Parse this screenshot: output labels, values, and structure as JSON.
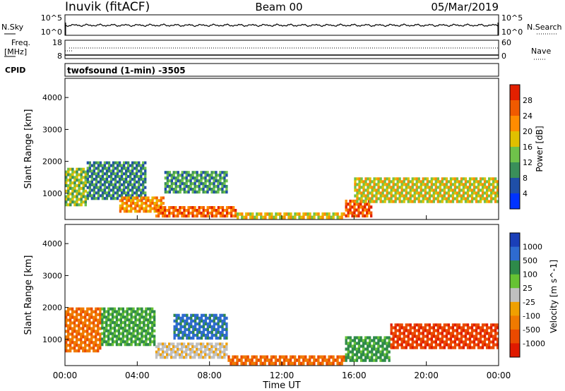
{
  "header": {
    "station": "Inuvik (fitACF)",
    "beam": "Beam 00",
    "date": "05/Mar/2019"
  },
  "panels": {
    "nsky": {
      "left_label": "N.Sky",
      "tick_top": "10^5",
      "tick_bottom": "10^0",
      "right_label": "N.Search",
      "right_tick_top": "10^5",
      "right_tick_bottom": "10^0"
    },
    "freq": {
      "label_line1": "Freq.",
      "label_line2": "[MHz]",
      "tick_top": "18",
      "tick_bottom": "8",
      "right_label": "Nave",
      "right_tick_top": "60",
      "right_tick_bottom": "0"
    },
    "cpid": {
      "label": "CPID",
      "text": "twofsound (1-min) -3505"
    }
  },
  "colors": {
    "power": [
      "#0033ff",
      "#1f4fa8",
      "#3a8f5a",
      "#6fc24a",
      "#e0c000",
      "#ff8c00",
      "#f05a00",
      "#e22000"
    ],
    "velocity": [
      "#1a3fb8",
      "#2e6bd0",
      "#2e8a4a",
      "#66c233",
      "#c0c0c0",
      "#f0a000",
      "#f07a00",
      "#ea4a00",
      "#e01a00"
    ]
  },
  "chart_data": [
    {
      "type": "heatmap",
      "title": "Power",
      "ylabel": "Slant Range [km]",
      "ylim": [
        180,
        4600
      ],
      "yticks": [
        "1000",
        "2000",
        "3000",
        "4000"
      ],
      "xlim": [
        0,
        24
      ],
      "xticks": [
        "00:00",
        "04:00",
        "08:00",
        "12:00",
        "16:00",
        "20:00",
        "00:00"
      ],
      "colorbar_label": "Power [dB]",
      "colorbar_ticks": [
        "4",
        "8",
        "12",
        "16",
        "20",
        "24",
        "28"
      ],
      "regions": [
        {
          "t0": 0.0,
          "t1": 1.2,
          "r0": 600,
          "r1": 1800,
          "db": 16
        },
        {
          "t0": 1.2,
          "t1": 4.5,
          "r0": 800,
          "r1": 2000,
          "db": 12
        },
        {
          "t0": 3.0,
          "t1": 5.5,
          "r0": 400,
          "r1": 900,
          "db": 24
        },
        {
          "t0": 5.5,
          "t1": 9.0,
          "r0": 1000,
          "r1": 1700,
          "db": 12
        },
        {
          "t0": 5.0,
          "t1": 9.5,
          "r0": 250,
          "r1": 600,
          "db": 28
        },
        {
          "t0": 9.5,
          "t1": 15.5,
          "r0": 200,
          "r1": 400,
          "db": 20
        },
        {
          "t0": 15.5,
          "t1": 17.0,
          "r0": 250,
          "r1": 800,
          "db": 26
        },
        {
          "t0": 16.0,
          "t1": 24.0,
          "r0": 700,
          "r1": 1500,
          "db": 18
        }
      ]
    },
    {
      "type": "heatmap",
      "title": "Velocity",
      "ylabel": "Slant Range [km]",
      "ylim": [
        180,
        4600
      ],
      "yticks": [
        "1000",
        "2000",
        "3000",
        "4000"
      ],
      "xlim": [
        0,
        24
      ],
      "xticks": [
        "00:00",
        "04:00",
        "08:00",
        "12:00",
        "16:00",
        "20:00",
        "00:00"
      ],
      "xlabel": "Time UT",
      "colorbar_label": "Velocity [m s^-1]",
      "colorbar_ticks": [
        "1000",
        "500",
        "100",
        "25",
        "-25",
        "-100",
        "-500",
        "-1000"
      ],
      "regions": [
        {
          "t0": 0.0,
          "t1": 2.0,
          "r0": 600,
          "r1": 2000,
          "v": -100
        },
        {
          "t0": 2.0,
          "t1": 5.0,
          "r0": 800,
          "r1": 2000,
          "v": 100
        },
        {
          "t0": 5.0,
          "t1": 9.0,
          "r0": 400,
          "r1": 900,
          "v": 0
        },
        {
          "t0": 6.0,
          "t1": 9.0,
          "r0": 1000,
          "r1": 1800,
          "v": 700
        },
        {
          "t0": 9.0,
          "t1": 15.5,
          "r0": 200,
          "r1": 500,
          "v": -100
        },
        {
          "t0": 15.5,
          "t1": 18.0,
          "r0": 300,
          "r1": 1100,
          "v": 200
        },
        {
          "t0": 18.0,
          "t1": 24.0,
          "r0": 700,
          "r1": 1500,
          "v": -600
        }
      ]
    }
  ]
}
